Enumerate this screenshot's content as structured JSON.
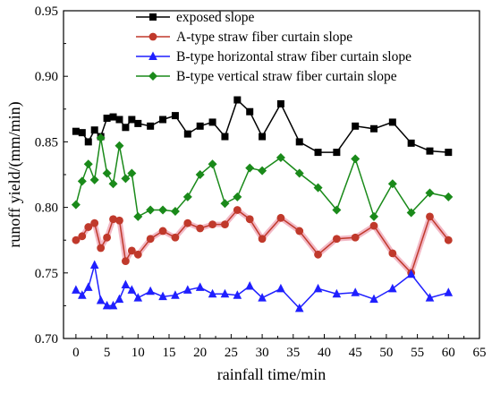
{
  "chart_data": {
    "type": "line",
    "title": "",
    "xlabel": "rainfall time/min",
    "ylabel": "runoff yield/(mm/min)",
    "xlim": [
      -2,
      65
    ],
    "ylim": [
      0.7,
      0.95
    ],
    "xticks": [
      0,
      5,
      10,
      15,
      20,
      25,
      30,
      35,
      40,
      45,
      50,
      55,
      60,
      65
    ],
    "yticks": [
      0.7,
      0.75,
      0.8,
      0.85,
      0.9,
      0.95
    ],
    "ytick_labels": [
      "0.70",
      "0.75",
      "0.80",
      "0.85",
      "0.90",
      "0.95"
    ],
    "legend_position": "top-right",
    "grid": false,
    "series": [
      {
        "name": "exposed slope",
        "color": "#000000",
        "marker": "square",
        "points": [
          [
            0,
            0.858
          ],
          [
            1,
            0.857
          ],
          [
            2,
            0.85
          ],
          [
            3,
            0.859
          ],
          [
            4,
            0.854
          ],
          [
            5,
            0.868
          ],
          [
            6,
            0.869
          ],
          [
            7,
            0.867
          ],
          [
            8,
            0.861
          ],
          [
            9,
            0.867
          ],
          [
            10,
            0.864
          ],
          [
            12,
            0.862
          ],
          [
            14,
            0.867
          ],
          [
            16,
            0.87
          ],
          [
            18,
            0.856
          ],
          [
            20,
            0.862
          ],
          [
            22,
            0.865
          ],
          [
            24,
            0.854
          ],
          [
            26,
            0.882
          ],
          [
            28,
            0.873
          ],
          [
            30,
            0.854
          ],
          [
            33,
            0.879
          ],
          [
            36,
            0.85
          ],
          [
            39,
            0.842
          ],
          [
            42,
            0.842
          ],
          [
            45,
            0.862
          ],
          [
            48,
            0.86
          ],
          [
            51,
            0.865
          ],
          [
            54,
            0.849
          ],
          [
            57,
            0.843
          ],
          [
            60,
            0.842
          ]
        ]
      },
      {
        "name": "A-type straw fiber curtain slope",
        "color": "#c0392b",
        "marker": "circle",
        "points": [
          [
            0,
            0.775
          ],
          [
            1,
            0.778
          ],
          [
            2,
            0.785
          ],
          [
            3,
            0.788
          ],
          [
            4,
            0.769
          ],
          [
            5,
            0.777
          ],
          [
            6,
            0.791
          ],
          [
            7,
            0.79
          ],
          [
            8,
            0.759
          ],
          [
            9,
            0.767
          ],
          [
            10,
            0.764
          ],
          [
            12,
            0.776
          ],
          [
            14,
            0.782
          ],
          [
            16,
            0.777
          ],
          [
            18,
            0.788
          ],
          [
            20,
            0.784
          ],
          [
            22,
            0.787
          ],
          [
            24,
            0.787
          ],
          [
            26,
            0.798
          ],
          [
            28,
            0.791
          ],
          [
            30,
            0.776
          ],
          [
            33,
            0.792
          ],
          [
            36,
            0.782
          ],
          [
            39,
            0.764
          ],
          [
            42,
            0.776
          ],
          [
            45,
            0.777
          ],
          [
            48,
            0.786
          ],
          [
            51,
            0.765
          ],
          [
            54,
            0.75
          ],
          [
            57,
            0.793
          ],
          [
            60,
            0.775
          ]
        ]
      },
      {
        "name": "B-type horizontal straw fiber curtain slope",
        "color": "#1f1fff",
        "marker": "triangle",
        "points": [
          [
            0,
            0.737
          ],
          [
            1,
            0.733
          ],
          [
            2,
            0.739
          ],
          [
            3,
            0.756
          ],
          [
            4,
            0.729
          ],
          [
            5,
            0.725
          ],
          [
            6,
            0.725
          ],
          [
            7,
            0.73
          ],
          [
            8,
            0.741
          ],
          [
            9,
            0.737
          ],
          [
            10,
            0.731
          ],
          [
            12,
            0.736
          ],
          [
            14,
            0.732
          ],
          [
            16,
            0.733
          ],
          [
            18,
            0.737
          ],
          [
            20,
            0.739
          ],
          [
            22,
            0.734
          ],
          [
            24,
            0.734
          ],
          [
            26,
            0.733
          ],
          [
            28,
            0.74
          ],
          [
            30,
            0.731
          ],
          [
            33,
            0.738
          ],
          [
            36,
            0.723
          ],
          [
            39,
            0.738
          ],
          [
            42,
            0.734
          ],
          [
            45,
            0.735
          ],
          [
            48,
            0.73
          ],
          [
            51,
            0.738
          ],
          [
            54,
            0.749
          ],
          [
            57,
            0.731
          ],
          [
            60,
            0.735
          ]
        ]
      },
      {
        "name": "B-type vertical straw fiber curtain slope",
        "color": "#1a8a1a",
        "marker": "diamond",
        "points": [
          [
            0,
            0.802
          ],
          [
            1,
            0.82
          ],
          [
            2,
            0.833
          ],
          [
            3,
            0.821
          ],
          [
            4,
            0.853
          ],
          [
            5,
            0.826
          ],
          [
            6,
            0.818
          ],
          [
            7,
            0.847
          ],
          [
            8,
            0.822
          ],
          [
            9,
            0.826
          ],
          [
            10,
            0.793
          ],
          [
            12,
            0.798
          ],
          [
            14,
            0.798
          ],
          [
            16,
            0.797
          ],
          [
            18,
            0.808
          ],
          [
            20,
            0.825
          ],
          [
            22,
            0.833
          ],
          [
            24,
            0.803
          ],
          [
            26,
            0.808
          ],
          [
            28,
            0.83
          ],
          [
            30,
            0.828
          ],
          [
            33,
            0.838
          ],
          [
            36,
            0.826
          ],
          [
            39,
            0.815
          ],
          [
            42,
            0.798
          ],
          [
            45,
            0.837
          ],
          [
            48,
            0.793
          ],
          [
            51,
            0.818
          ],
          [
            54,
            0.796
          ],
          [
            57,
            0.811
          ],
          [
            60,
            0.808
          ]
        ]
      }
    ]
  }
}
